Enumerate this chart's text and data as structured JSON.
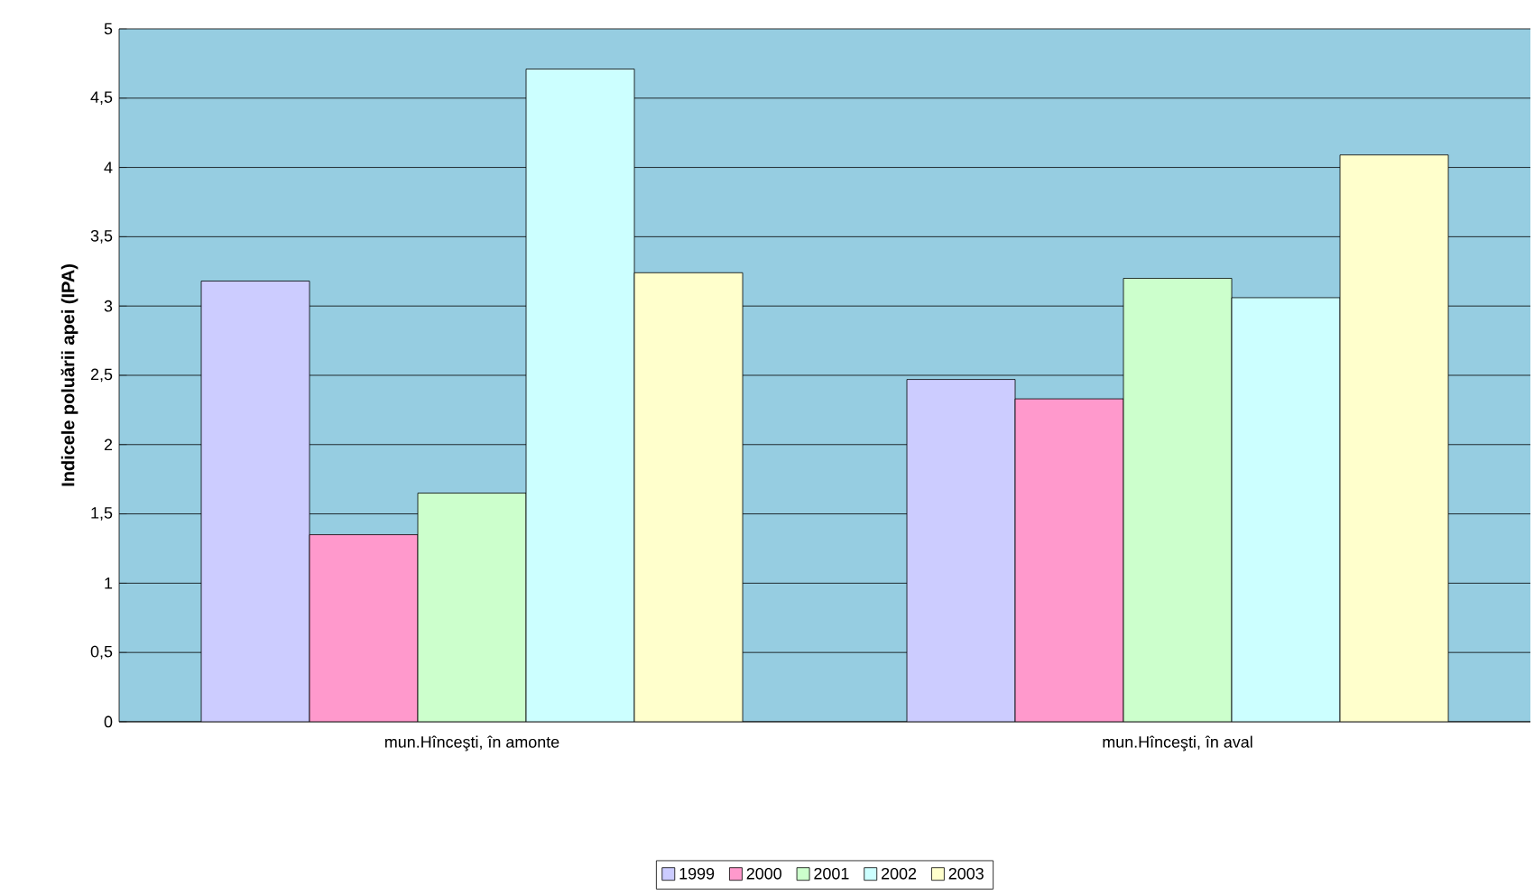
{
  "chart_data": {
    "type": "bar",
    "ylabel": "Indicele poluării apei (IPA)",
    "categories": [
      "mun.Hînceşti, în amonte",
      "mun.Hînceşti, în aval"
    ],
    "series": [
      {
        "name": "1999",
        "color": "#ccccff",
        "values": [
          3.18,
          2.47
        ]
      },
      {
        "name": "2000",
        "color": "#ff99cc",
        "values": [
          1.35,
          2.33
        ]
      },
      {
        "name": "2001",
        "color": "#ccffcc",
        "values": [
          1.65,
          3.2
        ]
      },
      {
        "name": "2002",
        "color": "#ccffff",
        "values": [
          4.71,
          3.06
        ]
      },
      {
        "name": "2003",
        "color": "#ffffcc",
        "values": [
          3.24,
          4.09
        ]
      }
    ],
    "ylim": [
      0,
      5
    ],
    "yticks": [
      0,
      {
        "value": 0.5,
        "label": "0,5"
      },
      1,
      {
        "value": 1.5,
        "label": "1,5"
      },
      2,
      {
        "value": 2.5,
        "label": "2,5"
      },
      3,
      {
        "value": 3.5,
        "label": "3,5"
      },
      4,
      {
        "value": 4.5,
        "label": "4,5"
      },
      5
    ],
    "grid": "y",
    "legend": "bottom"
  }
}
